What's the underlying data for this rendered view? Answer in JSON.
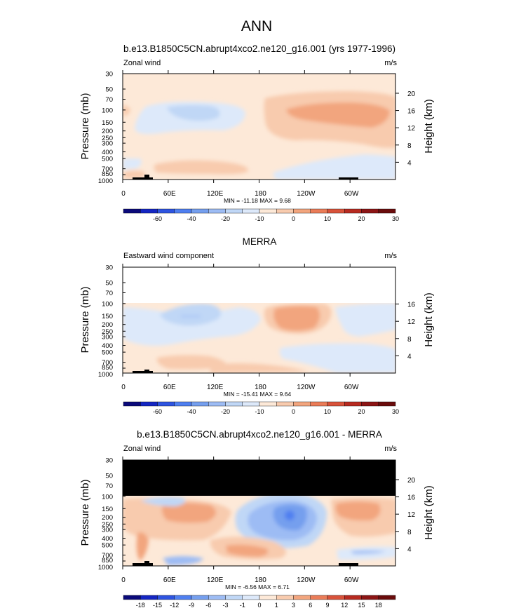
{
  "chart_data": {
    "type": "heatmap",
    "title": "ANN",
    "panels": [
      {
        "id": "model",
        "title": "b.e13.B1850C5CN.abrupt4xco2.ne120_g16.001 (yrs 1977-1996)",
        "left_label": "Zonal wind",
        "units": "m/s",
        "ylabel": "Pressure (mb)",
        "ylabel_right": "Height (km)",
        "pressure_ticks": [
          "30",
          "50",
          "70",
          "100",
          "150",
          "200",
          "250",
          "300",
          "400",
          "500",
          "700",
          "850",
          "1000"
        ],
        "height_ticks": [
          "20",
          "16",
          "12",
          "8",
          "4"
        ],
        "lon_ticks": [
          "0",
          "60E",
          "120E",
          "180",
          "120W",
          "60W"
        ],
        "stats": "MIN = -11.18  MAX =  9.68",
        "colorbar_labels": [
          "-60",
          "-40",
          "-20",
          "-10",
          "0",
          "10",
          "20",
          "30"
        ],
        "colorbar_colors": [
          "#0b0a7a",
          "#1426c2",
          "#2e54e0",
          "#4f7ff0",
          "#759fee",
          "#9dbcf4",
          "#c0d7f6",
          "#dde9fa",
          "#fde9d8",
          "#f8cbae",
          "#f2a57e",
          "#ea7c58",
          "#d8523a",
          "#b72a20",
          "#8c1515",
          "#6a0c0c"
        ],
        "top_blank_to": null,
        "masked_to": null
      },
      {
        "id": "obs",
        "title": "MERRA",
        "left_label": "Eastward wind component",
        "units": "m/s",
        "ylabel": "Pressure (mb)",
        "ylabel_right": "Height (km)",
        "pressure_ticks": [
          "30",
          "50",
          "70",
          "100",
          "150",
          "200",
          "250",
          "300",
          "400",
          "500",
          "700",
          "850",
          "1000"
        ],
        "height_ticks": [
          "16",
          "12",
          "8",
          "4"
        ],
        "lon_ticks": [
          "0",
          "60E",
          "120E",
          "180",
          "120W",
          "60W"
        ],
        "stats": "MIN = -15.41  MAX =  9.64",
        "colorbar_labels": [
          "-60",
          "-40",
          "-20",
          "-10",
          "0",
          "10",
          "20",
          "30"
        ],
        "colorbar_colors": [
          "#0b0a7a",
          "#1426c2",
          "#2e54e0",
          "#4f7ff0",
          "#759fee",
          "#9dbcf4",
          "#c0d7f6",
          "#dde9fa",
          "#fde9d8",
          "#f8cbae",
          "#f2a57e",
          "#ea7c58",
          "#d8523a",
          "#b72a20",
          "#8c1515",
          "#6a0c0c"
        ],
        "top_blank_to": 100,
        "masked_to": null
      },
      {
        "id": "diff",
        "title": "b.e13.B1850C5CN.abrupt4xco2.ne120_g16.001 - MERRA",
        "left_label": "Zonal wind",
        "units": "m/s",
        "ylabel": "Pressure (mb)",
        "ylabel_right": "Height (km)",
        "pressure_ticks": [
          "30",
          "50",
          "70",
          "100",
          "150",
          "200",
          "250",
          "300",
          "400",
          "500",
          "700",
          "850",
          "1000"
        ],
        "height_ticks": [
          "20",
          "16",
          "12",
          "8",
          "4"
        ],
        "lon_ticks": [
          "0",
          "60E",
          "120E",
          "180",
          "120W",
          "60W"
        ],
        "stats": "MIN = -6.56  MAX =  6.71",
        "colorbar_labels": [
          "-18",
          "-15",
          "-12",
          "-9",
          "-6",
          "-3",
          "-1",
          "0",
          "1",
          "3",
          "6",
          "9",
          "12",
          "15",
          "18"
        ],
        "colorbar_colors": [
          "#0b0a7a",
          "#1426c2",
          "#2e54e0",
          "#4f7ff0",
          "#759fee",
          "#9dbcf4",
          "#c0d7f6",
          "#dde9fa",
          "#fde9d8",
          "#f8cbae",
          "#f2a57e",
          "#ea7c58",
          "#d8523a",
          "#b72a20",
          "#8c1515",
          "#6a0c0c"
        ],
        "top_blank_to": null,
        "masked_to": 100
      }
    ]
  }
}
